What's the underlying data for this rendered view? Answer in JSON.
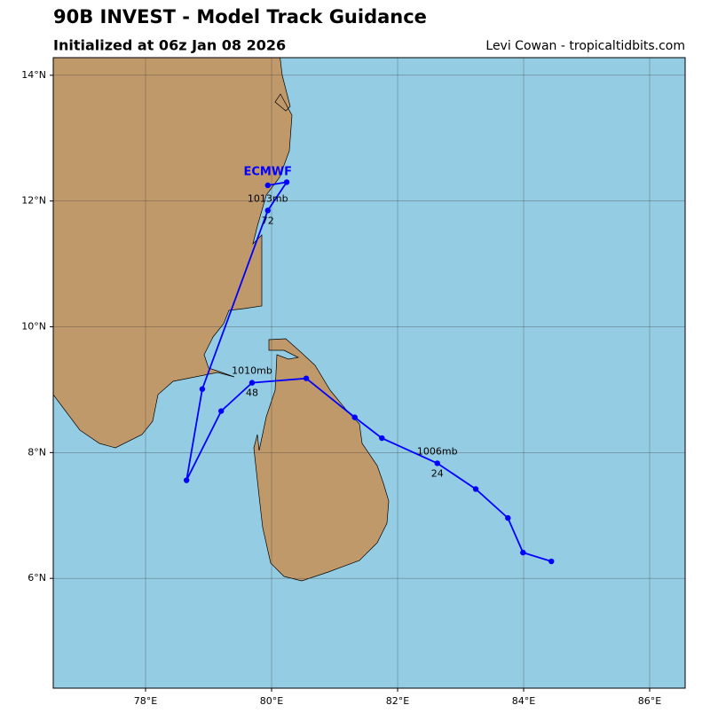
{
  "chart_data": {
    "type": "track",
    "title": "90B INVEST - Model Track Guidance",
    "subtitle": "Initialized at 06z Jan 08 2026",
    "credit": "Levi Cowan - tropicaltidbits.com",
    "x": [
      84.44,
      83.99,
      83.75,
      83.24,
      82.63,
      81.75,
      81.32,
      80.55,
      79.69,
      79.2,
      78.65,
      78.9,
      79.94,
      80.24,
      79.94
    ],
    "series": [
      {
        "name": "ECMWF",
        "color": "#0000ff",
        "values": [
          6.27,
          6.41,
          6.96,
          7.42,
          7.83,
          8.23,
          8.56,
          9.18,
          9.11,
          8.66,
          7.56,
          9.01,
          11.85,
          12.3,
          12.25
        ]
      }
    ],
    "pressure_labels": [
      "1006mb",
      "1010mb",
      "1013mb"
    ],
    "hour_labels": [
      24,
      48,
      72
    ],
    "xlim": [
      76.535,
      86.563
    ],
    "ylim": [
      4.254,
      14.28
    ],
    "xticks": [
      {
        "value": 78,
        "label": "78°E"
      },
      {
        "value": 80,
        "label": "80°E"
      },
      {
        "value": 82,
        "label": "82°E"
      },
      {
        "value": 84,
        "label": "84°E"
      },
      {
        "value": 86,
        "label": "86°E"
      }
    ],
    "yticks": [
      {
        "value": 6,
        "label": "6°N"
      },
      {
        "value": 8,
        "label": "8°N"
      },
      {
        "value": 10,
        "label": "10°N"
      },
      {
        "value": 12,
        "label": "12°N"
      },
      {
        "value": 14,
        "label": "14°N"
      }
    ],
    "grid": true
  }
}
